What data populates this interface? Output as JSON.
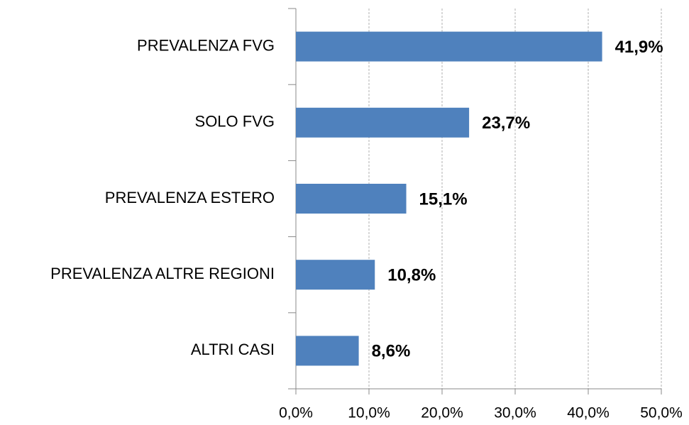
{
  "chart_data": {
    "type": "hbar",
    "categories": [
      "PREVALENZA FVG",
      "SOLO FVG",
      "PREVALENZA ESTERO",
      "PREVALENZA ALTRE REGIONI",
      "ALTRI CASI"
    ],
    "values": [
      41.9,
      23.7,
      15.1,
      10.8,
      8.6
    ],
    "value_labels": [
      "41,9%",
      "23,7%",
      "15,1%",
      "10,8%",
      "8,6%"
    ],
    "color": "#4f81bd",
    "xlim": [
      0,
      50
    ],
    "xticks": [
      {
        "value": 0,
        "label": "0,0%"
      },
      {
        "value": 10,
        "label": "10,0%"
      },
      {
        "value": 20,
        "label": "20,0%"
      },
      {
        "value": 30,
        "label": "30,0%"
      },
      {
        "value": 40,
        "label": "40,0%"
      },
      {
        "value": 50,
        "label": "50,0%"
      }
    ],
    "grid": true
  }
}
